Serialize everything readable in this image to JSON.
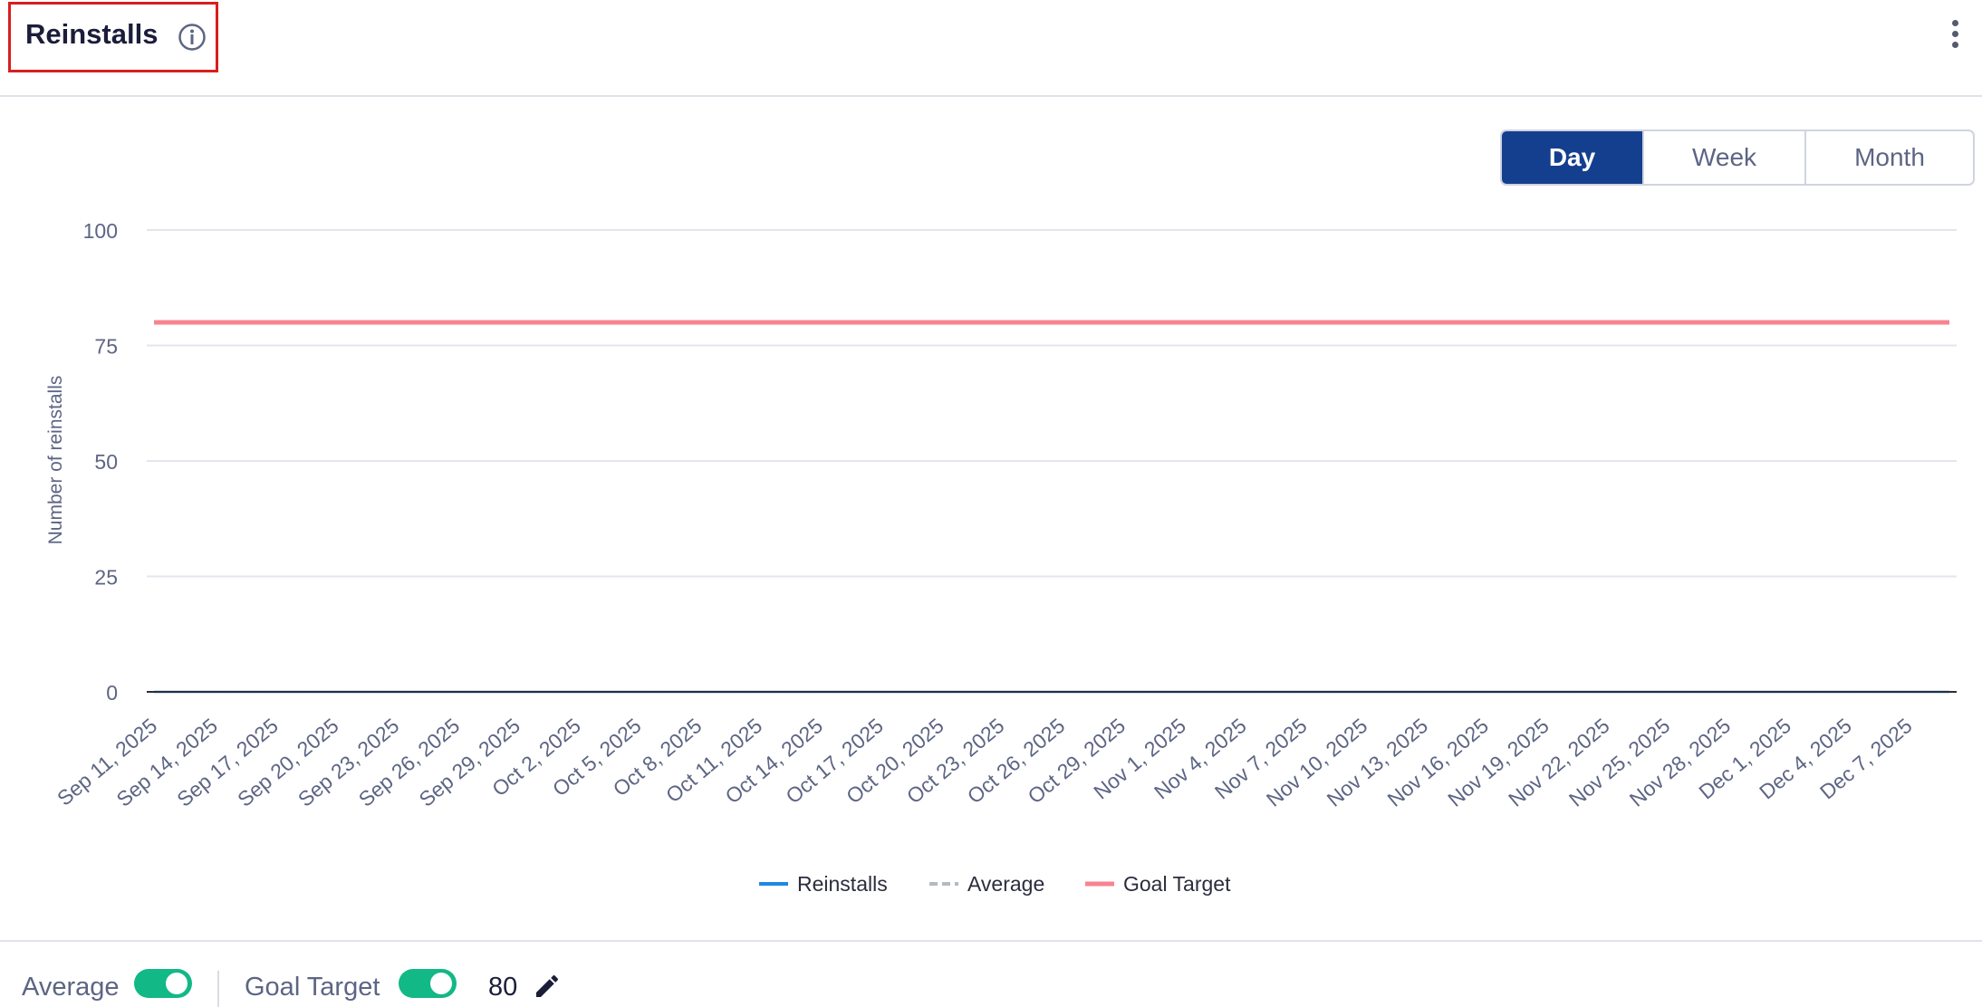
{
  "header": {
    "title": "Reinstalls",
    "info_icon": "info-circle-icon",
    "menu_icon": "more-vertical-icon"
  },
  "range_tabs": [
    {
      "label": "Day",
      "active": true
    },
    {
      "label": "Week",
      "active": false
    },
    {
      "label": "Month",
      "active": false
    }
  ],
  "chart_data": {
    "type": "line",
    "ylabel": "Number of reinstalls",
    "ylim": [
      0,
      100
    ],
    "yticks": [
      0,
      25,
      50,
      75,
      100
    ],
    "x_tick_labels": [
      "Sep 11, 2025",
      "Sep 14, 2025",
      "Sep 17, 2025",
      "Sep 20, 2025",
      "Sep 23, 2025",
      "Sep 26, 2025",
      "Sep 29, 2025",
      "Oct 2, 2025",
      "Oct 5, 2025",
      "Oct 8, 2025",
      "Oct 11, 2025",
      "Oct 14, 2025",
      "Oct 17, 2025",
      "Oct 20, 2025",
      "Oct 23, 2025",
      "Oct 26, 2025",
      "Oct 29, 2025",
      "Nov 1, 2025",
      "Nov 4, 2025",
      "Nov 7, 2025",
      "Nov 10, 2025",
      "Nov 13, 2025",
      "Nov 16, 2025",
      "Nov 19, 2025",
      "Nov 22, 2025",
      "Nov 25, 2025",
      "Nov 28, 2025",
      "Dec 1, 2025",
      "Dec 4, 2025",
      "Dec 7, 2025"
    ],
    "x_range": [
      "Sep 11, 2025",
      "Dec 9, 2025"
    ],
    "series": [
      {
        "name": "Reinstalls",
        "color": "#1e88e5",
        "style": "solid",
        "value": 0
      },
      {
        "name": "Average",
        "color": "#b5b9c4",
        "style": "dashed",
        "value": 0
      },
      {
        "name": "Goal Target",
        "color": "#f7848f",
        "style": "solid",
        "value": 80
      }
    ],
    "legend_position": "bottom-center",
    "grid": true
  },
  "footer": {
    "average_label": "Average",
    "average_on": true,
    "goal_label": "Goal Target",
    "goal_on": true,
    "goal_value": "80",
    "edit_icon": "pencil-icon"
  }
}
